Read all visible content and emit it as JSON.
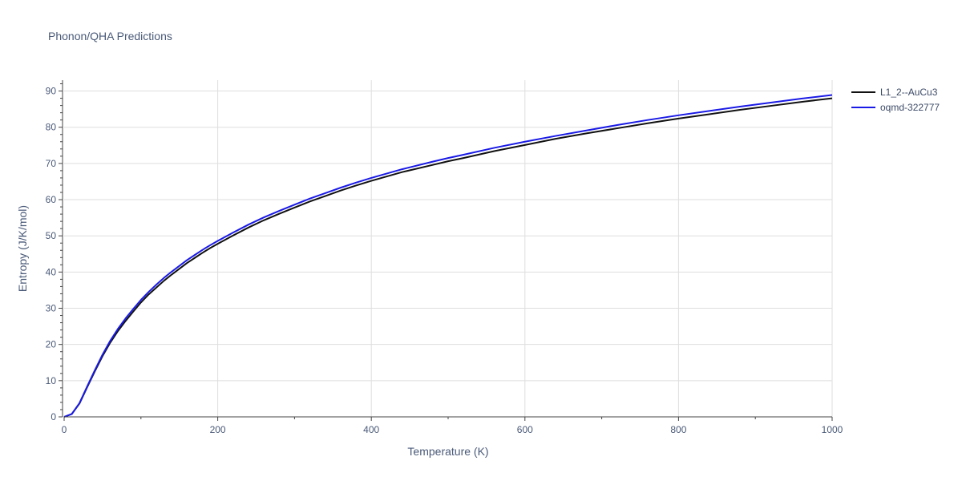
{
  "chart_data": {
    "type": "line",
    "title": "Phonon/QHA Predictions",
    "xlabel": "Temperature (K)",
    "ylabel": "Entropy (J/K/mol)",
    "xlim": [
      0,
      1000
    ],
    "ylim": [
      0,
      93
    ],
    "x_ticks": [
      0,
      200,
      400,
      600,
      800,
      1000
    ],
    "y_ticks": [
      0,
      10,
      20,
      30,
      40,
      50,
      60,
      70,
      80,
      90
    ],
    "grid": true,
    "legend_position": "top-right",
    "series": [
      {
        "name": "L1_2--AuCu3",
        "color": "#111111",
        "x": [
          0,
          10,
          20,
          30,
          40,
          50,
          60,
          70,
          80,
          90,
          100,
          110,
          120,
          130,
          140,
          150,
          160,
          170,
          180,
          190,
          200,
          220,
          240,
          260,
          280,
          300,
          320,
          340,
          360,
          380,
          400,
          440,
          480,
          500,
          520,
          560,
          600,
          640,
          680,
          720,
          760,
          800,
          840,
          880,
          920,
          960,
          1000
        ],
        "y": [
          0,
          0.8,
          3.7,
          8.2,
          12.6,
          16.8,
          20.5,
          23.7,
          26.5,
          29.1,
          31.6,
          33.8,
          35.7,
          37.6,
          39.3,
          40.9,
          42.5,
          43.9,
          45.3,
          46.6,
          47.8,
          50.1,
          52.3,
          54.3,
          56.1,
          57.8,
          59.5,
          61.0,
          62.5,
          63.9,
          65.2,
          67.6,
          69.6,
          70.6,
          71.5,
          73.4,
          75.1,
          76.8,
          78.3,
          79.7,
          81.1,
          82.4,
          83.6,
          84.8,
          85.9,
          87.0,
          88.0
        ]
      },
      {
        "name": "oqmd-322777",
        "color": "#1a1ae6",
        "x": [
          0,
          10,
          20,
          30,
          40,
          50,
          60,
          70,
          80,
          90,
          100,
          110,
          120,
          130,
          140,
          150,
          160,
          170,
          180,
          190,
          200,
          220,
          240,
          260,
          280,
          300,
          320,
          340,
          360,
          380,
          400,
          440,
          480,
          500,
          520,
          560,
          600,
          640,
          680,
          720,
          760,
          800,
          840,
          880,
          920,
          960,
          1000
        ],
        "y": [
          0,
          0.8,
          3.8,
          8.4,
          12.9,
          17.2,
          21.0,
          24.3,
          27.2,
          29.8,
          32.3,
          34.5,
          36.5,
          38.4,
          40.1,
          41.7,
          43.3,
          44.7,
          46.1,
          47.4,
          48.6,
          50.9,
          53.1,
          55.1,
          56.9,
          58.6,
          60.3,
          61.8,
          63.3,
          64.7,
          66.0,
          68.4,
          70.5,
          71.5,
          72.4,
          74.3,
          76.0,
          77.6,
          79.1,
          80.6,
          82.0,
          83.3,
          84.5,
          85.7,
          86.8,
          87.9,
          88.9
        ]
      }
    ]
  }
}
